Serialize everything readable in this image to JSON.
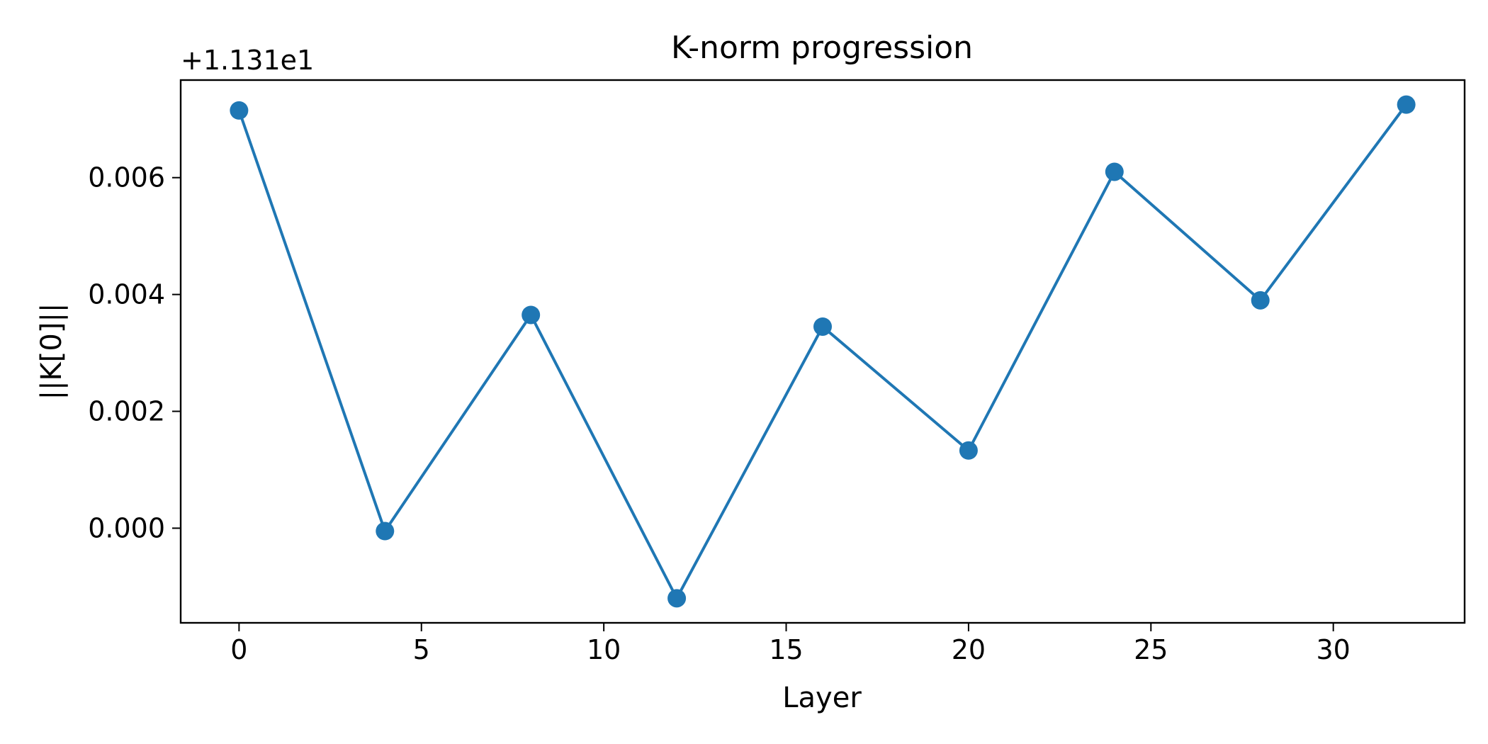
{
  "chart_data": {
    "type": "line",
    "title": "K-norm progression",
    "xlabel": "Layer",
    "ylabel": "||K[0]||",
    "y_offset_label": "+1.131e1",
    "x": [
      0,
      4,
      8,
      12,
      16,
      20,
      24,
      28,
      32
    ],
    "series": [
      {
        "values": [
          0.00715,
          -5e-05,
          0.00365,
          -0.0012,
          0.00345,
          0.00133,
          0.0061,
          0.0039,
          0.00725
        ]
      }
    ],
    "x_ticks": [
      0,
      5,
      10,
      15,
      20,
      25,
      30
    ],
    "x_tick_labels": [
      "0",
      "5",
      "10",
      "15",
      "20",
      "25",
      "30"
    ],
    "y_ticks": [
      0,
      0.002,
      0.004,
      0.006
    ],
    "y_tick_labels": [
      "0.000",
      "0.002",
      "0.004",
      "0.006"
    ],
    "xlim": [
      -1.6,
      33.6
    ],
    "ylim": [
      -0.00162,
      0.00767
    ],
    "grid": false,
    "line_color": "#1f77b4",
    "marker": "circle"
  }
}
